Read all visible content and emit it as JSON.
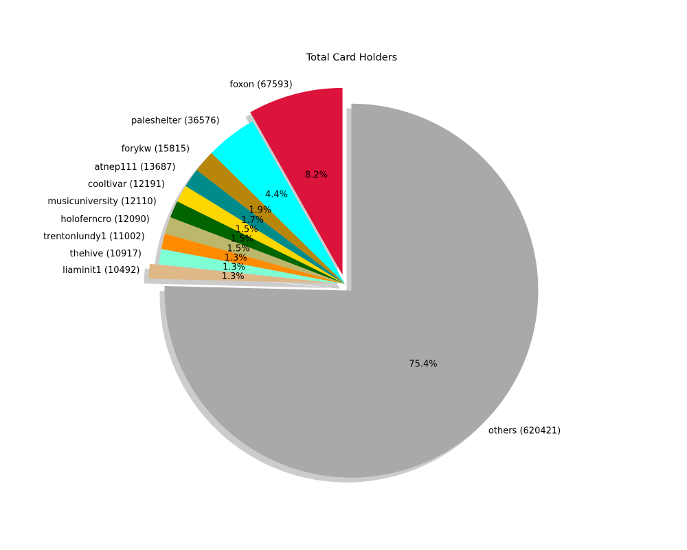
{
  "chart_data": {
    "type": "pie",
    "title": "Total Card Holders",
    "start_angle_deg": 90,
    "direction": "counterclockwise",
    "shadow": true,
    "exploded": [
      "foxon",
      "liaminit1",
      "others"
    ],
    "slices": [
      {
        "name": "foxon",
        "value": 67593,
        "label": "foxon (67593)",
        "pct_label": "8.2%",
        "color": "#DC143C"
      },
      {
        "name": "paleshelter",
        "value": 36576,
        "label": "paleshelter (36576)",
        "pct_label": "4.4%",
        "color": "#00FFFF"
      },
      {
        "name": "forykw",
        "value": 15815,
        "label": "forykw (15815)",
        "pct_label": "1.9%",
        "color": "#B8860B"
      },
      {
        "name": "atnep111",
        "value": 13687,
        "label": "atnep111 (13687)",
        "pct_label": "1.7%",
        "color": "#008B8B"
      },
      {
        "name": "cooltivar",
        "value": 12191,
        "label": "cooltivar (12191)",
        "pct_label": "1.5%",
        "color": "#FFD700"
      },
      {
        "name": "musicuniversity",
        "value": 12110,
        "label": "musicuniversity (12110)",
        "pct_label": "1.5%",
        "color": "#006400"
      },
      {
        "name": "holoferncro",
        "value": 12090,
        "label": "holoferncro (12090)",
        "pct_label": "1.5%",
        "color": "#BDB76B"
      },
      {
        "name": "trentonlundy1",
        "value": 11002,
        "label": "trentonlundy1 (11002)",
        "pct_label": "1.3%",
        "color": "#FF8C00"
      },
      {
        "name": "thehive",
        "value": 10917,
        "label": "thehive (10917)",
        "pct_label": "1.3%",
        "color": "#7FFFD4"
      },
      {
        "name": "liaminit1",
        "value": 10492,
        "label": "liaminit1 (10492)",
        "pct_label": "1.3%",
        "color": "#DEB887"
      },
      {
        "name": "others",
        "value": 620421,
        "label": "others (620421)",
        "pct_label": "75.4%",
        "color": "#A9A9A9"
      }
    ]
  }
}
